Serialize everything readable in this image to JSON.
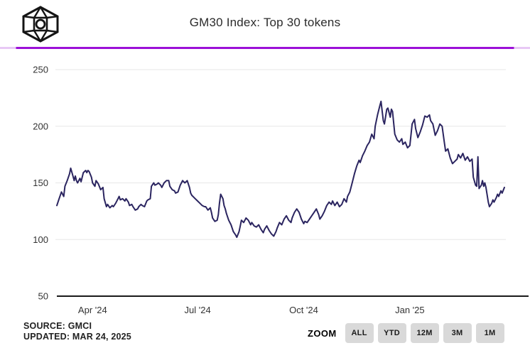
{
  "header": {
    "title": "GM30 Index: Top 30 tokens",
    "logo_icon": "gmci-cube-logo"
  },
  "colors": {
    "accent_purple": "#9B10D8",
    "accent_purple_light": "#E8C8F5",
    "series_line": "#2B2560",
    "grid": "#E7E7E7",
    "axis": "#1A1A1A",
    "tick_text": "#333333"
  },
  "footer": {
    "source": "SOURCE: GMCI",
    "updated": "UPDATED: MAR 24, 2025"
  },
  "zoom_controls": {
    "label": "ZOOM",
    "buttons": [
      "ALL",
      "YTD",
      "12M",
      "3M",
      "1M"
    ]
  },
  "chart_data": {
    "type": "line",
    "title": "GM30 Index: Top 30 tokens",
    "xlabel": "",
    "ylabel": "",
    "ylim": [
      50,
      250
    ],
    "yticks": [
      250,
      200,
      150,
      100,
      50
    ],
    "x_range": [
      "2024-03-01",
      "2025-03-24"
    ],
    "xticks": [
      {
        "date": "2024-04-01",
        "label": "Apr '24"
      },
      {
        "date": "2024-07-01",
        "label": "Jul '24"
      },
      {
        "date": "2024-10-01",
        "label": "Oct '24"
      },
      {
        "date": "2025-01-01",
        "label": "Jan '25"
      }
    ],
    "grid": "horizontal",
    "legend": "none",
    "series": [
      {
        "name": "GM30 Index",
        "color": "#2B2560",
        "points": [
          [
            "2024-03-01",
            130
          ],
          [
            "2024-03-03",
            136
          ],
          [
            "2024-03-05",
            142
          ],
          [
            "2024-03-07",
            138
          ],
          [
            "2024-03-08",
            147
          ],
          [
            "2024-03-10",
            152
          ],
          [
            "2024-03-12",
            158
          ],
          [
            "2024-03-13",
            163
          ],
          [
            "2024-03-15",
            156
          ],
          [
            "2024-03-16",
            152
          ],
          [
            "2024-03-17",
            156
          ],
          [
            "2024-03-18",
            152
          ],
          [
            "2024-03-19",
            150
          ],
          [
            "2024-03-21",
            154
          ],
          [
            "2024-03-22",
            151
          ],
          [
            "2024-03-23",
            155
          ],
          [
            "2024-03-24",
            159
          ],
          [
            "2024-03-26",
            161
          ],
          [
            "2024-03-27",
            159
          ],
          [
            "2024-03-28",
            161
          ],
          [
            "2024-03-29",
            160
          ],
          [
            "2024-03-31",
            155
          ],
          [
            "2024-04-01",
            150
          ],
          [
            "2024-04-03",
            147
          ],
          [
            "2024-04-04",
            152
          ],
          [
            "2024-04-06",
            149
          ],
          [
            "2024-04-08",
            144
          ],
          [
            "2024-04-10",
            146
          ],
          [
            "2024-04-11",
            136
          ],
          [
            "2024-04-13",
            129
          ],
          [
            "2024-04-14",
            131
          ],
          [
            "2024-04-16",
            128
          ],
          [
            "2024-04-18",
            130
          ],
          [
            "2024-04-19",
            129
          ],
          [
            "2024-04-21",
            132
          ],
          [
            "2024-04-23",
            136
          ],
          [
            "2024-04-24",
            138
          ],
          [
            "2024-04-25",
            135
          ],
          [
            "2024-04-27",
            136
          ],
          [
            "2024-04-29",
            134
          ],
          [
            "2024-04-30",
            136
          ],
          [
            "2024-05-02",
            133
          ],
          [
            "2024-05-03",
            130
          ],
          [
            "2024-05-05",
            131
          ],
          [
            "2024-05-06",
            129
          ],
          [
            "2024-05-08",
            126
          ],
          [
            "2024-05-10",
            127
          ],
          [
            "2024-05-11",
            129
          ],
          [
            "2024-05-13",
            131
          ],
          [
            "2024-05-14",
            130
          ],
          [
            "2024-05-16",
            129
          ],
          [
            "2024-05-18",
            134
          ],
          [
            "2024-05-19",
            135
          ],
          [
            "2024-05-21",
            136
          ],
          [
            "2024-05-22",
            147
          ],
          [
            "2024-05-24",
            150
          ],
          [
            "2024-05-25",
            148
          ],
          [
            "2024-05-27",
            149
          ],
          [
            "2024-05-28",
            150
          ],
          [
            "2024-05-30",
            148
          ],
          [
            "2024-05-31",
            146
          ],
          [
            "2024-06-02",
            150
          ],
          [
            "2024-06-04",
            152
          ],
          [
            "2024-06-06",
            152
          ],
          [
            "2024-06-07",
            147
          ],
          [
            "2024-06-09",
            144
          ],
          [
            "2024-06-11",
            143
          ],
          [
            "2024-06-12",
            141
          ],
          [
            "2024-06-14",
            142
          ],
          [
            "2024-06-16",
            148
          ],
          [
            "2024-06-17",
            150
          ],
          [
            "2024-06-18",
            152
          ],
          [
            "2024-06-20",
            150
          ],
          [
            "2024-06-22",
            152
          ],
          [
            "2024-06-24",
            146
          ],
          [
            "2024-06-25",
            141
          ],
          [
            "2024-06-26",
            139
          ],
          [
            "2024-06-28",
            137
          ],
          [
            "2024-06-29",
            136
          ],
          [
            "2024-07-01",
            134
          ],
          [
            "2024-07-02",
            133
          ],
          [
            "2024-07-04",
            131
          ],
          [
            "2024-07-05",
            130
          ],
          [
            "2024-07-07",
            129
          ],
          [
            "2024-07-08",
            129
          ],
          [
            "2024-07-10",
            126
          ],
          [
            "2024-07-12",
            128
          ],
          [
            "2024-07-13",
            124
          ],
          [
            "2024-07-14",
            119
          ],
          [
            "2024-07-16",
            116
          ],
          [
            "2024-07-18",
            117
          ],
          [
            "2024-07-19",
            122
          ],
          [
            "2024-07-20",
            132
          ],
          [
            "2024-07-21",
            140
          ],
          [
            "2024-07-23",
            136
          ],
          [
            "2024-07-24",
            130
          ],
          [
            "2024-07-25",
            127
          ],
          [
            "2024-07-26",
            123
          ],
          [
            "2024-07-28",
            117
          ],
          [
            "2024-07-30",
            113
          ],
          [
            "2024-08-01",
            107
          ],
          [
            "2024-08-03",
            104
          ],
          [
            "2024-08-04",
            102
          ],
          [
            "2024-08-06",
            107
          ],
          [
            "2024-08-07",
            112
          ],
          [
            "2024-08-08",
            117
          ],
          [
            "2024-08-10",
            115
          ],
          [
            "2024-08-12",
            119
          ],
          [
            "2024-08-14",
            117
          ],
          [
            "2024-08-16",
            113
          ],
          [
            "2024-08-17",
            115
          ],
          [
            "2024-08-19",
            112
          ],
          [
            "2024-08-21",
            111
          ],
          [
            "2024-08-23",
            113
          ],
          [
            "2024-08-25",
            109
          ],
          [
            "2024-08-27",
            106
          ],
          [
            "2024-08-28",
            109
          ],
          [
            "2024-08-30",
            112
          ],
          [
            "2024-09-01",
            108
          ],
          [
            "2024-09-03",
            105
          ],
          [
            "2024-09-05",
            103
          ],
          [
            "2024-09-07",
            107
          ],
          [
            "2024-09-08",
            110
          ],
          [
            "2024-09-10",
            115
          ],
          [
            "2024-09-12",
            113
          ],
          [
            "2024-09-14",
            118
          ],
          [
            "2024-09-16",
            121
          ],
          [
            "2024-09-18",
            117
          ],
          [
            "2024-09-20",
            115
          ],
          [
            "2024-09-21",
            119
          ],
          [
            "2024-09-23",
            124
          ],
          [
            "2024-09-25",
            127
          ],
          [
            "2024-09-27",
            124
          ],
          [
            "2024-09-29",
            118
          ],
          [
            "2024-10-01",
            114
          ],
          [
            "2024-10-02",
            116
          ],
          [
            "2024-10-04",
            115
          ],
          [
            "2024-10-06",
            118
          ],
          [
            "2024-10-08",
            121
          ],
          [
            "2024-10-10",
            124
          ],
          [
            "2024-10-12",
            127
          ],
          [
            "2024-10-14",
            122
          ],
          [
            "2024-10-15",
            118
          ],
          [
            "2024-10-17",
            121
          ],
          [
            "2024-10-19",
            125
          ],
          [
            "2024-10-21",
            130
          ],
          [
            "2024-10-23",
            133
          ],
          [
            "2024-10-25",
            131
          ],
          [
            "2024-10-26",
            134
          ],
          [
            "2024-10-28",
            130
          ],
          [
            "2024-10-30",
            133
          ],
          [
            "2024-11-01",
            129
          ],
          [
            "2024-11-03",
            131
          ],
          [
            "2024-11-05",
            136
          ],
          [
            "2024-11-07",
            133
          ],
          [
            "2024-11-08",
            138
          ],
          [
            "2024-11-10",
            142
          ],
          [
            "2024-11-12",
            150
          ],
          [
            "2024-11-14",
            158
          ],
          [
            "2024-11-16",
            165
          ],
          [
            "2024-11-18",
            170
          ],
          [
            "2024-11-19",
            168
          ],
          [
            "2024-11-21",
            174
          ],
          [
            "2024-11-23",
            178
          ],
          [
            "2024-11-25",
            183
          ],
          [
            "2024-11-27",
            186
          ],
          [
            "2024-11-29",
            193
          ],
          [
            "2024-12-01",
            189
          ],
          [
            "2024-12-02",
            200
          ],
          [
            "2024-12-04",
            210
          ],
          [
            "2024-12-06",
            218
          ],
          [
            "2024-12-07",
            222
          ],
          [
            "2024-12-09",
            205
          ],
          [
            "2024-12-10",
            202
          ],
          [
            "2024-12-12",
            215
          ],
          [
            "2024-12-13",
            216
          ],
          [
            "2024-12-15",
            208
          ],
          [
            "2024-12-16",
            215
          ],
          [
            "2024-12-17",
            213
          ],
          [
            "2024-12-19",
            193
          ],
          [
            "2024-12-21",
            188
          ],
          [
            "2024-12-23",
            186
          ],
          [
            "2024-12-25",
            189
          ],
          [
            "2024-12-26",
            184
          ],
          [
            "2024-12-28",
            186
          ],
          [
            "2024-12-30",
            181
          ],
          [
            "2025-01-01",
            183
          ],
          [
            "2025-01-03",
            202
          ],
          [
            "2025-01-05",
            206
          ],
          [
            "2025-01-06",
            198
          ],
          [
            "2025-01-08",
            190
          ],
          [
            "2025-01-10",
            195
          ],
          [
            "2025-01-12",
            201
          ],
          [
            "2025-01-14",
            209
          ],
          [
            "2025-01-16",
            208
          ],
          [
            "2025-01-18",
            210
          ],
          [
            "2025-01-19",
            205
          ],
          [
            "2025-01-21",
            202
          ],
          [
            "2025-01-23",
            192
          ],
          [
            "2025-01-25",
            196
          ],
          [
            "2025-01-27",
            202
          ],
          [
            "2025-01-29",
            200
          ],
          [
            "2025-01-31",
            185
          ],
          [
            "2025-02-01",
            178
          ],
          [
            "2025-02-03",
            180
          ],
          [
            "2025-02-05",
            172
          ],
          [
            "2025-02-07",
            167
          ],
          [
            "2025-02-09",
            169
          ],
          [
            "2025-02-11",
            171
          ],
          [
            "2025-02-12",
            175
          ],
          [
            "2025-02-14",
            172
          ],
          [
            "2025-02-16",
            176
          ],
          [
            "2025-02-18",
            170
          ],
          [
            "2025-02-20",
            173
          ],
          [
            "2025-02-22",
            169
          ],
          [
            "2025-02-24",
            171
          ],
          [
            "2025-02-25",
            155
          ],
          [
            "2025-02-27",
            148
          ],
          [
            "2025-02-28",
            147
          ],
          [
            "2025-03-01",
            173
          ],
          [
            "2025-03-02",
            145
          ],
          [
            "2025-03-04",
            148
          ],
          [
            "2025-03-05",
            152
          ],
          [
            "2025-03-06",
            147
          ],
          [
            "2025-03-07",
            150
          ],
          [
            "2025-03-08",
            146
          ],
          [
            "2025-03-10",
            133
          ],
          [
            "2025-03-11",
            129
          ],
          [
            "2025-03-13",
            132
          ],
          [
            "2025-03-14",
            135
          ],
          [
            "2025-03-15",
            133
          ],
          [
            "2025-03-17",
            137
          ],
          [
            "2025-03-18",
            140
          ],
          [
            "2025-03-19",
            138
          ],
          [
            "2025-03-21",
            143
          ],
          [
            "2025-03-22",
            141
          ],
          [
            "2025-03-24",
            146
          ]
        ]
      }
    ]
  }
}
